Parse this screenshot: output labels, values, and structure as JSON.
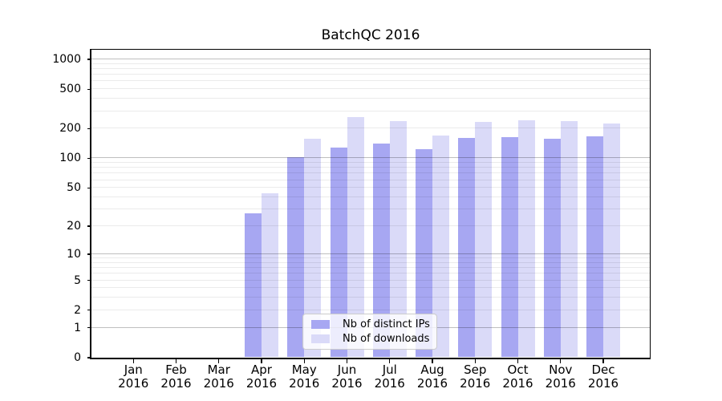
{
  "chart_data": {
    "type": "bar",
    "title": "BatchQC 2016",
    "year": "2016",
    "categories": [
      "Jan",
      "Feb",
      "Mar",
      "Apr",
      "May",
      "Jun",
      "Jul",
      "Aug",
      "Sep",
      "Oct",
      "Nov",
      "Dec"
    ],
    "series": [
      {
        "name": "Nb of distinct IPs",
        "color": "#a7a7f2",
        "values": [
          0,
          0,
          0,
          27,
          101,
          128,
          140,
          122,
          159,
          163,
          156,
          165
        ]
      },
      {
        "name": "Nb of downloads",
        "color": "#dadaf8",
        "values": [
          0,
          0,
          0,
          44,
          157,
          257,
          238,
          169,
          231,
          240,
          237,
          225
        ]
      }
    ],
    "y_ticks": [
      0,
      1,
      2,
      5,
      10,
      20,
      50,
      100,
      200,
      500,
      1000
    ],
    "y_scale": "log1p",
    "ylim": [
      0,
      1250
    ],
    "grid": true,
    "legend_position": "bottom-center",
    "colors": {
      "grid_major": "rgba(0,0,0,0.25)",
      "grid_minor": "rgba(0,0,0,0.08)",
      "axis": "#000000",
      "text": "#000000",
      "legend_border": "#cccccc",
      "legend_background": "rgba(255,255,255,0.8)"
    }
  }
}
